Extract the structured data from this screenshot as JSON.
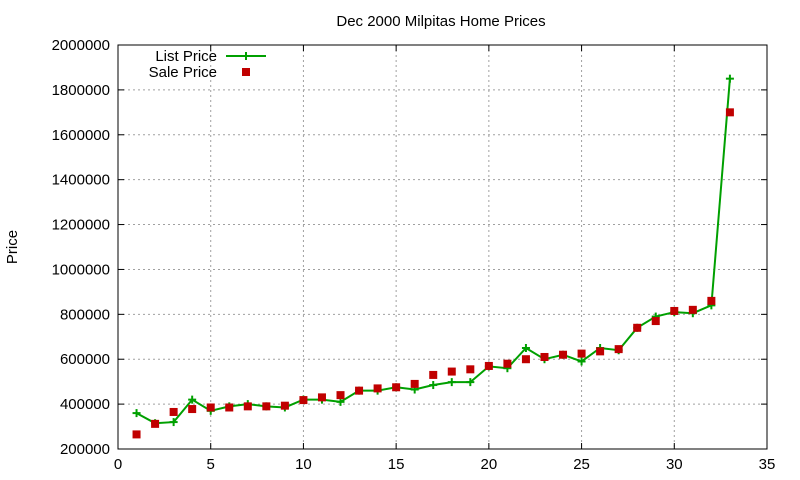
{
  "chart_data": {
    "type": "line",
    "title": "Dec 2000 Milpitas Home Prices",
    "xlabel": "",
    "ylabel": "Price",
    "xlim": [
      0,
      35
    ],
    "ylim": [
      200000,
      2000000
    ],
    "x_ticks": [
      0,
      5,
      10,
      15,
      20,
      25,
      30,
      35
    ],
    "y_ticks": [
      200000,
      400000,
      600000,
      800000,
      1000000,
      1200000,
      1400000,
      1600000,
      1800000,
      2000000
    ],
    "grid": true,
    "legend_position": "top-left",
    "series": [
      {
        "name": "List Price",
        "style": "linespoints",
        "marker": "plus",
        "color": "#00a000",
        "x": [
          1,
          2,
          3,
          4,
          5,
          6,
          7,
          8,
          9,
          10,
          11,
          12,
          13,
          14,
          15,
          16,
          17,
          18,
          19,
          20,
          21,
          22,
          23,
          24,
          25,
          26,
          27,
          28,
          29,
          30,
          31,
          32,
          33
        ],
        "y": [
          360000,
          315000,
          320000,
          420000,
          370000,
          390000,
          400000,
          390000,
          385000,
          420000,
          420000,
          410000,
          460000,
          460000,
          475000,
          465000,
          485000,
          498000,
          498000,
          568000,
          560000,
          650000,
          600000,
          620000,
          590000,
          650000,
          640000,
          740000,
          790000,
          810000,
          805000,
          840000,
          1850000
        ]
      },
      {
        "name": "Sale Price",
        "style": "points",
        "marker": "square",
        "color": "#c00000",
        "x": [
          1,
          2,
          3,
          4,
          5,
          6,
          7,
          8,
          9,
          10,
          11,
          12,
          13,
          14,
          15,
          16,
          17,
          18,
          19,
          20,
          21,
          22,
          23,
          24,
          25,
          26,
          27,
          28,
          29,
          30,
          31,
          32,
          33
        ],
        "y": [
          265000,
          312000,
          365000,
          378000,
          385000,
          385000,
          390000,
          390000,
          393000,
          418000,
          430000,
          440000,
          460000,
          470000,
          475000,
          490000,
          530000,
          545000,
          555000,
          570000,
          580000,
          600000,
          610000,
          620000,
          625000,
          635000,
          645000,
          740000,
          770000,
          815000,
          820000,
          860000,
          1700000
        ]
      }
    ]
  }
}
